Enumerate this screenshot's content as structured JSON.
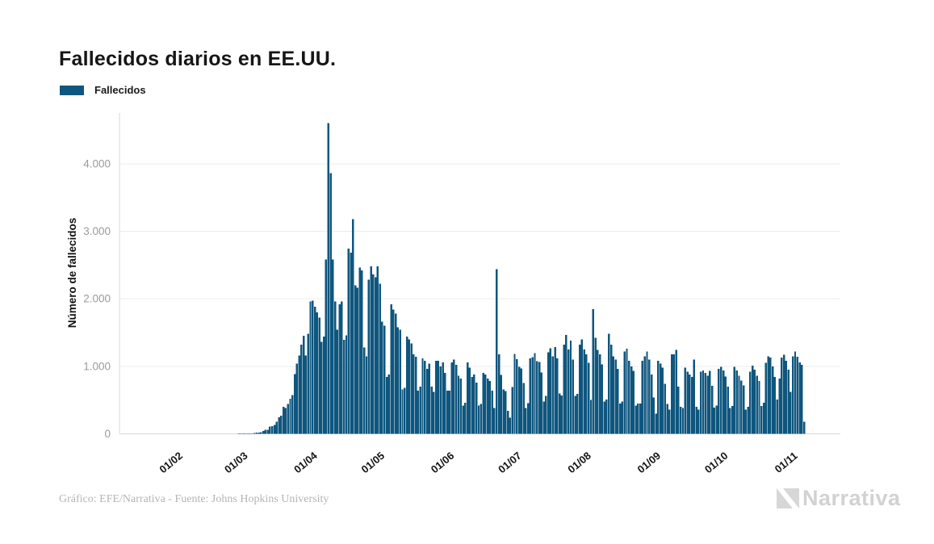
{
  "title": "Fallecidos diarios en EE.UU.",
  "legend": {
    "label": "Fallecidos",
    "color": "#0F567E"
  },
  "footer": {
    "credit": "Gráfico: EFE/Narrativa - Fuente: Johns Hopkins University"
  },
  "logo": {
    "text": "Narrativa"
  },
  "chart_data": {
    "type": "bar",
    "title": "Fallecidos diarios en EE.UU.",
    "series_name": "Fallecidos",
    "xlabel": "",
    "ylabel": "Número de fallecidos",
    "ylim": [
      0,
      4750
    ],
    "grid": true,
    "legend_position": "top-left",
    "bar_color": "#0F567E",
    "grid_color": "#ececec",
    "axis_line_color": "#d9d9d9",
    "ytick_values": [
      0,
      1000,
      2000,
      3000,
      4000
    ],
    "ytick_labels": [
      "0",
      "1.000",
      "2.000",
      "3.000",
      "4.000"
    ],
    "xtick_labels": [
      "01/02",
      "01/03",
      "01/04",
      "01/05",
      "01/06",
      "01/07",
      "01/08",
      "01/09",
      "01/10",
      "01/11"
    ],
    "start_date": "2020-01-22",
    "x_unit": "day",
    "values": [
      0,
      0,
      0,
      0,
      0,
      0,
      0,
      0,
      0,
      0,
      0,
      0,
      0,
      0,
      0,
      0,
      0,
      0,
      0,
      0,
      0,
      0,
      0,
      0,
      0,
      0,
      0,
      0,
      0,
      0,
      0,
      0,
      0,
      0,
      0,
      0,
      0,
      0,
      1,
      1,
      1,
      2,
      3,
      3,
      4,
      4,
      5,
      4,
      6,
      7,
      9,
      11,
      15,
      18,
      23,
      41,
      58,
      62,
      110,
      113,
      133,
      179,
      247,
      268,
      400,
      385,
      442,
      518,
      573,
      886,
      1040,
      1160,
      1320,
      1450,
      1160,
      1480,
      1960,
      1970,
      1880,
      1800,
      1720,
      1360,
      1440,
      2580,
      4600,
      3860,
      2580,
      1960,
      1540,
      1920,
      1960,
      1390,
      1460,
      2740,
      2680,
      3180,
      2200,
      2160,
      2460,
      2420,
      1280,
      1150,
      2280,
      2480,
      2360,
      2320,
      2480,
      2220,
      1660,
      1600,
      840,
      880,
      1920,
      1840,
      1780,
      1580,
      1540,
      660,
      680,
      1440,
      1400,
      1340,
      1180,
      1140,
      640,
      700,
      1120,
      1080,
      960,
      1040,
      700,
      620,
      1080,
      1080,
      1000,
      1060,
      900,
      640,
      640,
      1060,
      1100,
      1020,
      860,
      820,
      420,
      460,
      1060,
      980,
      840,
      880,
      760,
      420,
      440,
      900,
      880,
      820,
      780,
      640,
      380,
      2440,
      1180,
      870,
      655,
      635,
      340,
      240,
      695,
      1185,
      1105,
      990,
      970,
      755,
      380,
      455,
      1120,
      1135,
      1195,
      1075,
      1065,
      910,
      480,
      560,
      1205,
      1265,
      1150,
      1285,
      1120,
      600,
      570,
      1320,
      1465,
      1250,
      1380,
      1100,
      560,
      590,
      1320,
      1400,
      1250,
      1180,
      1050,
      500,
      1845,
      1420,
      1240,
      1180,
      1030,
      480,
      510,
      1480,
      1320,
      1150,
      1100,
      960,
      450,
      480,
      1220,
      1260,
      1080,
      1000,
      930,
      420,
      450,
      450,
      1080,
      1150,
      1220,
      1100,
      880,
      540,
      300,
      1080,
      1040,
      980,
      740,
      440,
      360,
      1180,
      1180,
      1240,
      700,
      400,
      380,
      980,
      920,
      880,
      840,
      1100,
      400,
      360,
      920,
      940,
      900,
      860,
      930,
      710,
      390,
      420,
      960,
      990,
      940,
      850,
      700,
      380,
      410,
      990,
      940,
      860,
      790,
      720,
      360,
      400,
      920,
      1010,
      950,
      860,
      780,
      410,
      460,
      1050,
      1150,
      1130,
      1000,
      840,
      510,
      820,
      1130,
      1170,
      1080,
      950,
      620,
      1150,
      1220,
      1140,
      1060,
      1020,
      180
    ]
  }
}
